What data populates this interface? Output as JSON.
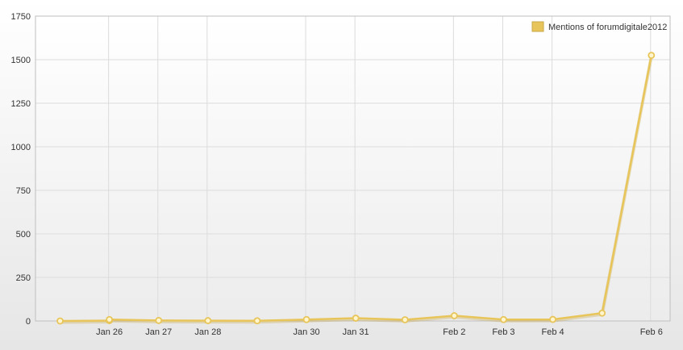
{
  "chart_data": {
    "type": "line",
    "title": "",
    "xlabel": "",
    "ylabel": "",
    "ylim": [
      0,
      1750
    ],
    "yticks": [
      0,
      250,
      500,
      750,
      1000,
      1250,
      1500,
      1750
    ],
    "xticks": [
      "Jan 26",
      "Jan 27",
      "Jan 28",
      "Jan 30",
      "Jan 31",
      "Feb 2",
      "Feb 3",
      "Feb 4",
      "Feb 6"
    ],
    "x": [
      "Jan 25",
      "Jan 26",
      "Jan 26",
      "Jan 27",
      "Jan 28",
      "Jan 29",
      "Jan 30",
      "Jan 31",
      "Feb 1",
      "Feb 2",
      "Feb 3",
      "Feb 4",
      "Feb 5",
      "Feb 6"
    ],
    "grid": true,
    "legend_position": "top-right",
    "series": [
      {
        "name": "Mentions of forumdigitale2012",
        "color": "#e8c55a",
        "values": [
          0,
          2,
          8,
          3,
          2,
          1,
          8,
          16,
          7,
          30,
          8,
          9,
          45,
          1525
        ]
      }
    ]
  }
}
